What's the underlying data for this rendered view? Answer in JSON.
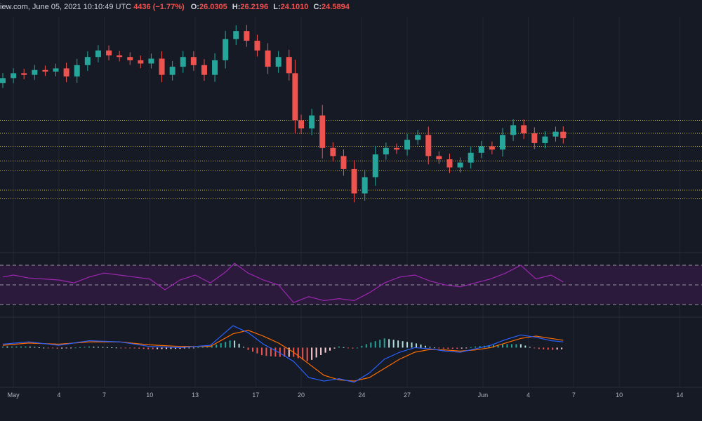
{
  "header": {
    "source_fragment": "iew.com, June 05, 2021 10:10:49 UTC",
    "change_fragment": "4436 (−1.77%)",
    "o_label": "O:",
    "o_value": "26.0305",
    "h_label": "H:",
    "h_value": "26.2196",
    "l_label": "L:",
    "l_value": "24.1010",
    "c_label": "C:",
    "c_value": "24.5894"
  },
  "colors": {
    "background": "#161a25",
    "up": "#26a69a",
    "down": "#ef5350",
    "grid": "#232733",
    "support_lines": "#c9b83a",
    "rsi_line": "#9c27b0",
    "rsi_band": "#2b1a3c",
    "macd_line": "#2962ff",
    "signal_line": "#ff6d00"
  },
  "chart_data": [
    {
      "type": "candlestick",
      "panel": "price",
      "x_ticks": [
        "May",
        "4",
        "7",
        "10",
        "13",
        "17",
        "20",
        "24",
        "27",
        "Jun",
        "4",
        "7",
        "10",
        "14"
      ],
      "x_tick_days": [
        1,
        4,
        7,
        10,
        13,
        17,
        20,
        24,
        27,
        32,
        35,
        38,
        41,
        45
      ],
      "x_range_days": [
        0.3,
        46
      ],
      "y_range": [
        20.5,
        34.5
      ],
      "horizontal_levels": [
        28.3,
        27.5,
        26.7,
        25.8,
        25.2,
        24.0,
        23.5
      ],
      "series": [
        {
          "d": 0.3,
          "o": 30.6,
          "c": 30.9
        },
        {
          "d": 1.0,
          "o": 30.9,
          "c": 31.2
        },
        {
          "d": 1.7,
          "o": 31.2,
          "c": 31.1
        },
        {
          "d": 2.4,
          "o": 31.1,
          "c": 31.4
        },
        {
          "d": 3.1,
          "o": 31.4,
          "c": 31.3
        },
        {
          "d": 3.8,
          "o": 31.3,
          "c": 31.5
        },
        {
          "d": 4.5,
          "o": 31.5,
          "c": 31.0
        },
        {
          "d": 5.2,
          "o": 31.0,
          "c": 31.7
        },
        {
          "d": 5.9,
          "o": 31.7,
          "c": 32.2
        },
        {
          "d": 6.6,
          "o": 32.2,
          "c": 32.6
        },
        {
          "d": 7.3,
          "o": 32.6,
          "c": 32.3
        },
        {
          "d": 8.0,
          "o": 32.3,
          "c": 32.2
        },
        {
          "d": 8.7,
          "o": 32.2,
          "c": 32.0
        },
        {
          "d": 9.4,
          "o": 32.0,
          "c": 31.8
        },
        {
          "d": 10.1,
          "o": 31.8,
          "c": 32.1
        },
        {
          "d": 10.8,
          "o": 32.1,
          "c": 31.1
        },
        {
          "d": 11.5,
          "o": 31.1,
          "c": 31.6
        },
        {
          "d": 12.2,
          "o": 31.6,
          "c": 32.2
        },
        {
          "d": 12.9,
          "o": 32.2,
          "c": 31.7
        },
        {
          "d": 13.6,
          "o": 31.7,
          "c": 31.1
        },
        {
          "d": 14.3,
          "o": 31.1,
          "c": 32.0
        },
        {
          "d": 15.0,
          "o": 32.0,
          "c": 33.3
        },
        {
          "d": 15.7,
          "o": 33.3,
          "c": 33.8
        },
        {
          "d": 16.4,
          "o": 33.8,
          "c": 33.2
        },
        {
          "d": 17.1,
          "o": 33.2,
          "c": 32.6
        },
        {
          "d": 17.8,
          "o": 32.6,
          "c": 31.6
        },
        {
          "d": 18.5,
          "o": 31.6,
          "c": 32.2
        },
        {
          "d": 19.2,
          "o": 32.2,
          "c": 31.2
        },
        {
          "d": 19.6,
          "o": 31.2,
          "c": 28.3
        },
        {
          "d": 20.0,
          "o": 28.3,
          "c": 27.8
        },
        {
          "d": 20.7,
          "o": 27.8,
          "c": 28.6
        },
        {
          "d": 21.4,
          "o": 28.6,
          "c": 26.6
        },
        {
          "d": 22.1,
          "o": 26.6,
          "c": 26.1
        },
        {
          "d": 22.8,
          "o": 26.1,
          "c": 25.3
        },
        {
          "d": 23.5,
          "o": 25.3,
          "c": 23.8
        },
        {
          "d": 24.2,
          "o": 23.8,
          "c": 24.8
        },
        {
          "d": 24.9,
          "o": 24.8,
          "c": 26.2
        },
        {
          "d": 25.6,
          "o": 26.2,
          "c": 26.6
        },
        {
          "d": 26.3,
          "o": 26.6,
          "c": 26.5
        },
        {
          "d": 27.0,
          "o": 26.5,
          "c": 27.1
        },
        {
          "d": 27.7,
          "o": 27.1,
          "c": 27.4
        },
        {
          "d": 28.4,
          "o": 27.4,
          "c": 26.1
        },
        {
          "d": 29.1,
          "o": 26.1,
          "c": 25.9
        },
        {
          "d": 29.8,
          "o": 25.9,
          "c": 25.4
        },
        {
          "d": 30.5,
          "o": 25.4,
          "c": 25.7
        },
        {
          "d": 31.2,
          "o": 25.7,
          "c": 26.3
        },
        {
          "d": 31.9,
          "o": 26.3,
          "c": 26.7
        },
        {
          "d": 32.6,
          "o": 26.7,
          "c": 26.5
        },
        {
          "d": 33.3,
          "o": 26.5,
          "c": 27.4
        },
        {
          "d": 34.0,
          "o": 27.4,
          "c": 28.0
        },
        {
          "d": 34.7,
          "o": 28.0,
          "c": 27.5
        },
        {
          "d": 35.4,
          "o": 27.5,
          "c": 26.9
        },
        {
          "d": 36.1,
          "o": 26.9,
          "c": 27.3
        },
        {
          "d": 36.8,
          "o": 27.3,
          "c": 27.6
        },
        {
          "d": 37.3,
          "o": 27.6,
          "c": 27.2
        }
      ]
    },
    {
      "type": "line",
      "panel": "rsi",
      "y_range": [
        20,
        80
      ],
      "levels": [
        70,
        50,
        30
      ],
      "x_range_days": [
        0.3,
        46
      ],
      "series": [
        {
          "x": [
            0.3,
            1.0,
            2.0,
            3.0,
            4.0,
            5.0,
            6.0,
            7.0,
            8.0,
            9.0,
            10.0,
            11.0,
            12.0,
            13.0,
            14.0,
            15.0,
            15.6,
            16.5,
            17.5,
            18.5,
            19.5,
            20.5,
            21.5,
            22.5,
            23.5,
            24.5,
            25.5,
            26.5,
            27.5,
            28.5,
            29.5,
            30.5,
            31.5,
            32.5,
            33.5,
            34.5,
            35.5,
            36.5,
            37.3
          ],
          "y": [
            58,
            60,
            57,
            56,
            55,
            52,
            58,
            62,
            60,
            58,
            56,
            45,
            55,
            60,
            52,
            63,
            72,
            62,
            55,
            50,
            32,
            38,
            34,
            36,
            34,
            42,
            52,
            58,
            60,
            54,
            50,
            48,
            52,
            56,
            62,
            70,
            56,
            60,
            53
          ]
        }
      ]
    },
    {
      "type": "macd",
      "panel": "macd",
      "y_range": [
        -1.6,
        1.2
      ],
      "x_range_days": [
        0.3,
        46
      ],
      "macd_line": {
        "x": [
          0.3,
          2,
          4,
          6,
          8,
          10,
          12,
          14,
          15.5,
          16.5,
          17.5,
          18.5,
          19.5,
          20.5,
          21.5,
          22.5,
          23.5,
          24.5,
          25.5,
          26.5,
          27.5,
          28.5,
          29.5,
          30.5,
          31.5,
          32.5,
          33.5,
          34.5,
          35.5,
          36.5,
          37.3
        ],
        "y": [
          0.15,
          0.25,
          0.1,
          0.3,
          0.25,
          0.05,
          0.0,
          0.1,
          0.95,
          0.65,
          0.15,
          -0.2,
          -0.6,
          -1.3,
          -1.45,
          -1.35,
          -1.5,
          -1.1,
          -0.5,
          -0.2,
          0.0,
          -0.05,
          -0.15,
          -0.2,
          -0.05,
          0.1,
          0.35,
          0.55,
          0.45,
          0.3,
          0.25
        ]
      },
      "signal_line": {
        "x": [
          0.3,
          2,
          4,
          6,
          8,
          10,
          12,
          14,
          15.5,
          16.5,
          17.5,
          18.5,
          19.5,
          20.5,
          21.5,
          22.5,
          23.5,
          24.5,
          25.5,
          26.5,
          27.5,
          28.5,
          29.5,
          30.5,
          31.5,
          32.5,
          33.5,
          34.5,
          35.5,
          36.5,
          37.3
        ],
        "y": [
          0.1,
          0.2,
          0.15,
          0.25,
          0.25,
          0.12,
          0.05,
          0.05,
          0.6,
          0.75,
          0.5,
          0.2,
          -0.2,
          -0.7,
          -1.2,
          -1.4,
          -1.45,
          -1.3,
          -0.9,
          -0.5,
          -0.2,
          -0.08,
          -0.1,
          -0.15,
          -0.1,
          0.0,
          0.2,
          0.4,
          0.5,
          0.4,
          0.32
        ]
      }
    }
  ]
}
